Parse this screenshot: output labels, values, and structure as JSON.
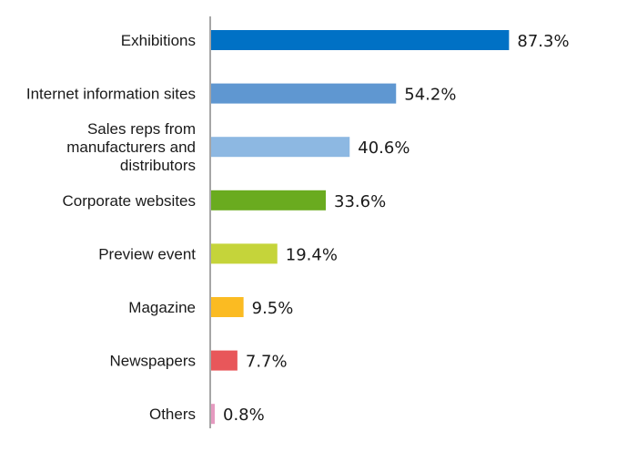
{
  "chart_data": {
    "type": "bar",
    "orientation": "horizontal",
    "categories": [
      [
        "Exhibitions"
      ],
      [
        "Internet information sites"
      ],
      [
        "Sales reps from",
        "manufacturers and",
        "distributors"
      ],
      [
        "Corporate websites"
      ],
      [
        "Preview event"
      ],
      [
        "Magazine"
      ],
      [
        "Newspapers"
      ],
      [
        "Others"
      ]
    ],
    "values": [
      87.3,
      54.2,
      40.6,
      33.6,
      19.4,
      9.5,
      7.7,
      0.8
    ],
    "value_labels": [
      "87.3%",
      "54.2%",
      "40.6%",
      "33.6%",
      "19.4%",
      "9.5%",
      "7.7%",
      "0.8%"
    ],
    "colors": [
      "#0071c5",
      "#5f97d1",
      "#8db8e2",
      "#6aab1f",
      "#c5d43a",
      "#fbbb22",
      "#e8575a",
      "#e59ac0"
    ],
    "xlim": [
      0,
      100
    ],
    "grid": false,
    "legend": "none"
  }
}
